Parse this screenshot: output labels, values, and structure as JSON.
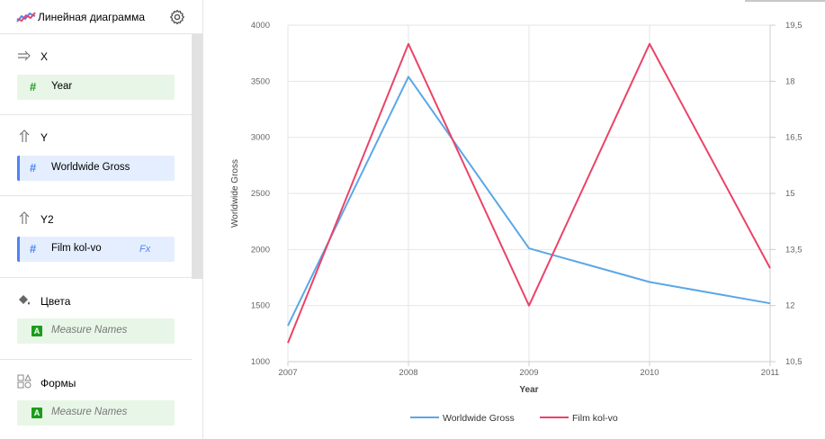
{
  "sidebar": {
    "chart_type_label": "Линейная диаграмма",
    "sections": {
      "x": {
        "title": "X",
        "chip": {
          "label": "Year",
          "icon": "#"
        }
      },
      "y": {
        "title": "Y",
        "chip": {
          "label": "Worldwide Gross",
          "icon": "#"
        }
      },
      "y2": {
        "title": "Y2",
        "chip": {
          "label": "Film kol-vo",
          "icon": "#",
          "formula_badge": "Fx"
        }
      },
      "colors": {
        "title": "Цвета",
        "chip": {
          "label": "Measure Names",
          "icon": "A"
        }
      },
      "shapes": {
        "title": "Формы",
        "chip": {
          "label": "Measure Names",
          "icon": "A"
        }
      }
    }
  },
  "colors": {
    "series_1": "#5aa7e8",
    "series_2": "#eb4368",
    "chip_green": "#e8f6e7",
    "chip_blue": "#e5eefe",
    "accent_blue": "#4d84f5"
  },
  "icons": {
    "chart_type": "line-chart-icon",
    "settings": "gear-icon",
    "x": "arrow-right-icon",
    "y": "arrow-up-icon",
    "y2": "arrow-up-icon",
    "colors": "paint-bucket-icon",
    "shapes": "shapes-icon"
  },
  "chart_data": {
    "type": "line",
    "x": [
      2007,
      2008,
      2009,
      2010,
      2011
    ],
    "xlabel": "Year",
    "ylabel": "Worldwide Gross",
    "ylim": [
      1000,
      4000
    ],
    "y_ticks": [
      "1000",
      "1500",
      "2000",
      "2500",
      "3000",
      "3500",
      "4000"
    ],
    "y2lim": [
      10.5,
      19.5
    ],
    "y2_ticks": [
      "10,5",
      "12",
      "13,5",
      "15",
      "16,5",
      "18",
      "19,5"
    ],
    "x_ticks": [
      "2007",
      "2008",
      "2009",
      "2010",
      "2011"
    ],
    "grid": true,
    "legend_position": "bottom-center",
    "series": [
      {
        "name": "Worldwide Gross",
        "axis": "left",
        "color": "#5aa7e8",
        "values": [
          1320,
          3540,
          2010,
          1710,
          1520
        ]
      },
      {
        "name": "Film kol-vo",
        "axis": "right",
        "color": "#eb4368",
        "values": [
          11,
          19,
          12,
          19,
          13
        ]
      }
    ]
  }
}
